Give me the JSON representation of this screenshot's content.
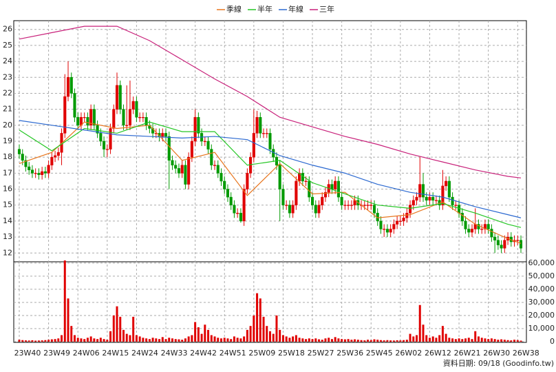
{
  "chart_data": {
    "type": "candlestick",
    "legend_position": "top",
    "grid": true,
    "footer": "資料日期: 09/18 (Goodinfo.tw)",
    "categories": [
      "23W40",
      null,
      null,
      null,
      null,
      null,
      null,
      null,
      null,
      "23W49",
      null,
      null,
      null,
      null,
      null,
      null,
      null,
      null,
      "24W06",
      null,
      null,
      null,
      null,
      null,
      null,
      null,
      null,
      "24W15",
      null,
      null,
      null,
      null,
      null,
      null,
      null,
      null,
      "24W24",
      null,
      null,
      null,
      null,
      null,
      null,
      null,
      null,
      "24W33",
      null,
      null,
      null,
      null,
      null,
      null,
      null,
      null,
      "24W42",
      null,
      null,
      null,
      null,
      null,
      null,
      null,
      null,
      "24W51",
      null,
      null,
      null,
      null,
      null,
      null,
      null,
      null,
      "25W09",
      null,
      null,
      null,
      null,
      null,
      null,
      null,
      null,
      "25W18",
      null,
      null,
      null,
      null,
      null,
      null,
      null,
      null,
      "25W27",
      null,
      null,
      null,
      null,
      null,
      null,
      null,
      null,
      "25W36",
      null,
      null,
      null,
      null,
      null,
      null,
      null,
      null,
      "25W45",
      null,
      null,
      null,
      null,
      null,
      null,
      null,
      null,
      "26W02",
      null,
      null,
      null,
      null,
      null,
      null,
      null,
      null,
      "26W12",
      null,
      null,
      null,
      null,
      null,
      null,
      null,
      null,
      "26W21",
      null,
      null,
      null,
      null,
      null,
      null,
      null,
      null,
      "26W30",
      null,
      null,
      null,
      null,
      null,
      null,
      null,
      null,
      "26W38",
      null
    ],
    "open": [
      18.5,
      18.2,
      17.8,
      17.4,
      17.2,
      17.0,
      17.0,
      16.9,
      17.1,
      17.0,
      17.5,
      18.0,
      18.1,
      18.3,
      19.5,
      21.8,
      23.0,
      22.0,
      20.5,
      20.0,
      20.5,
      20.5,
      20.0,
      21.0,
      20.0,
      19.5,
      19.0,
      18.5,
      18.5,
      19.8,
      21.0,
      22.5,
      21.0,
      20.0,
      20.0,
      21.0,
      21.5,
      20.5,
      20.5,
      20.5,
      20.0,
      19.8,
      19.5,
      19.5,
      19.3,
      19.5,
      19.3,
      17.8,
      17.5,
      17.3,
      17.0,
      17.5,
      16.3,
      18.0,
      19.0,
      20.5,
      19.5,
      19.0,
      19.0,
      18.5,
      17.5,
      17.5,
      17.0,
      16.5,
      16.0,
      15.5,
      15.0,
      14.5,
      14.5,
      14.0,
      16.0,
      17.0,
      18.0,
      19.5,
      20.5,
      19.5,
      19.5,
      19.5,
      18.5,
      18.0,
      17.5,
      16.0,
      15.0,
      15.0,
      14.5,
      15.0,
      16.5,
      17.0,
      16.5,
      16.5,
      15.5,
      15.0,
      14.5,
      15.0,
      15.5,
      15.8,
      16.3,
      16.0,
      16.5,
      15.5,
      15.0,
      15.0,
      15.0,
      15.0,
      15.3,
      15.0,
      15.0,
      15.0,
      15.0,
      15.0,
      14.5,
      14.0,
      13.5,
      13.5,
      13.3,
      13.5,
      13.8,
      14.0,
      14.0,
      14.2,
      14.5,
      15.0,
      15.3,
      15.5,
      16.3,
      15.5,
      15.3,
      15.5,
      15.3,
      15.3,
      15.0,
      16.2,
      16.5,
      15.5,
      15.0,
      15.0,
      14.5,
      14.0,
      13.5,
      13.3,
      13.5,
      13.8,
      13.5,
      13.5,
      13.8,
      13.5,
      13.0,
      12.8,
      12.5,
      12.3,
      12.8,
      13.0,
      12.7,
      12.8,
      12.8
    ],
    "high": [
      18.8,
      18.5,
      18.1,
      17.7,
      17.5,
      17.3,
      17.3,
      17.4,
      17.4,
      17.8,
      18.3,
      18.4,
      18.6,
      19.8,
      23.2,
      24.0,
      23.3,
      22.3,
      20.8,
      20.8,
      20.8,
      20.8,
      21.3,
      21.3,
      20.3,
      19.8,
      19.3,
      18.8,
      20.1,
      21.3,
      23.3,
      22.8,
      21.3,
      22.5,
      22.8,
      21.8,
      21.8,
      20.8,
      20.8,
      20.8,
      20.3,
      20.1,
      19.8,
      19.8,
      19.8,
      19.8,
      19.6,
      18.1,
      17.8,
      17.6,
      17.8,
      17.8,
      18.3,
      19.3,
      21.0,
      20.8,
      19.8,
      19.3,
      19.3,
      18.8,
      17.8,
      17.8,
      17.3,
      16.8,
      16.3,
      15.8,
      15.3,
      14.8,
      14.8,
      16.3,
      17.3,
      18.3,
      21.0,
      20.9,
      20.8,
      19.8,
      19.8,
      19.8,
      18.8,
      18.3,
      17.8,
      16.3,
      15.3,
      15.3,
      15.3,
      16.8,
      17.3,
      17.3,
      16.8,
      16.8,
      15.8,
      15.3,
      15.3,
      15.8,
      16.1,
      16.6,
      16.6,
      16.8,
      16.8,
      15.8,
      15.3,
      15.3,
      15.3,
      15.6,
      15.6,
      15.3,
      15.3,
      15.3,
      15.3,
      15.3,
      14.8,
      14.3,
      13.8,
      13.8,
      13.8,
      14.1,
      14.3,
      14.3,
      14.5,
      14.8,
      15.3,
      15.6,
      15.8,
      18.0,
      17.0,
      15.8,
      15.8,
      15.8,
      15.6,
      15.6,
      17.2,
      16.8,
      16.8,
      15.8,
      15.3,
      15.3,
      14.8,
      14.3,
      13.8,
      13.8,
      14.8,
      14.1,
      13.8,
      14.1,
      14.1,
      13.8,
      13.3,
      13.1,
      12.8,
      13.1,
      13.3,
      13.3,
      13.1,
      13.1,
      13.1
    ],
    "low": [
      17.9,
      17.5,
      17.1,
      16.9,
      16.7,
      16.7,
      16.6,
      16.6,
      16.7,
      16.7,
      17.2,
      17.7,
      17.8,
      17.5,
      19.2,
      21.5,
      21.7,
      20.2,
      19.7,
      19.7,
      20.2,
      19.7,
      19.7,
      19.7,
      19.2,
      18.7,
      18.0,
      18.0,
      18.2,
      19.5,
      20.7,
      20.7,
      19.7,
      19.7,
      19.7,
      20.7,
      20.2,
      20.2,
      20.2,
      19.7,
      19.5,
      19.2,
      19.2,
      19.0,
      19.0,
      19.0,
      16.0,
      17.2,
      17.0,
      16.7,
      16.7,
      16.0,
      16.0,
      17.7,
      18.7,
      19.2,
      18.7,
      18.7,
      18.2,
      17.2,
      17.2,
      16.7,
      16.2,
      15.7,
      15.2,
      14.7,
      14.2,
      14.2,
      13.9,
      13.7,
      15.7,
      16.7,
      17.7,
      19.2,
      19.2,
      19.2,
      19.2,
      18.2,
      17.7,
      17.2,
      14.0,
      14.7,
      14.7,
      14.2,
      14.2,
      14.7,
      16.2,
      16.2,
      16.2,
      15.2,
      14.7,
      14.2,
      14.2,
      14.7,
      15.2,
      15.5,
      15.7,
      15.7,
      15.2,
      14.7,
      14.7,
      14.7,
      14.7,
      14.7,
      14.7,
      14.7,
      14.7,
      14.7,
      14.7,
      14.2,
      13.7,
      13.2,
      13.0,
      13.0,
      13.0,
      13.2,
      13.5,
      13.7,
      13.7,
      13.9,
      14.2,
      14.7,
      15.0,
      15.2,
      15.2,
      15.0,
      15.0,
      15.0,
      15.0,
      14.7,
      14.7,
      15.9,
      15.2,
      14.7,
      14.7,
      14.2,
      13.7,
      13.2,
      13.0,
      13.0,
      13.2,
      13.2,
      13.2,
      13.2,
      13.2,
      12.7,
      12.0,
      12.2,
      12.0,
      12.0,
      12.5,
      12.4,
      12.4,
      12.5,
      12.0
    ],
    "close": [
      18.2,
      17.8,
      17.4,
      17.2,
      17.0,
      17.0,
      16.9,
      17.1,
      17.0,
      17.5,
      18.0,
      18.1,
      18.3,
      19.5,
      21.8,
      23.0,
      22.0,
      20.5,
      20.0,
      20.5,
      20.5,
      20.0,
      21.0,
      20.0,
      19.5,
      19.0,
      18.5,
      18.5,
      19.8,
      21.0,
      22.5,
      21.0,
      20.0,
      20.0,
      21.0,
      21.5,
      20.5,
      20.5,
      20.5,
      20.0,
      19.8,
      19.5,
      19.5,
      19.3,
      19.5,
      19.3,
      17.8,
      17.5,
      17.3,
      17.0,
      17.5,
      16.3,
      18.0,
      19.0,
      20.5,
      19.5,
      19.0,
      19.0,
      18.5,
      17.5,
      17.5,
      17.0,
      16.5,
      16.0,
      15.5,
      15.0,
      14.5,
      14.5,
      14.0,
      16.0,
      17.0,
      18.0,
      19.5,
      20.5,
      19.5,
      19.5,
      19.5,
      18.5,
      18.0,
      17.5,
      16.0,
      15.0,
      15.0,
      14.5,
      15.0,
      16.5,
      17.0,
      16.5,
      16.5,
      15.5,
      15.0,
      14.5,
      15.0,
      15.5,
      15.8,
      16.3,
      16.0,
      16.5,
      15.5,
      15.0,
      15.0,
      15.0,
      15.0,
      15.3,
      15.0,
      15.0,
      15.0,
      15.0,
      15.0,
      14.5,
      14.0,
      13.5,
      13.5,
      13.3,
      13.5,
      13.8,
      14.0,
      14.0,
      14.2,
      14.5,
      15.0,
      15.3,
      15.5,
      16.3,
      15.5,
      15.3,
      15.5,
      15.3,
      15.3,
      15.0,
      16.2,
      16.5,
      15.5,
      15.0,
      15.0,
      14.5,
      14.0,
      13.5,
      13.3,
      13.5,
      13.8,
      13.5,
      13.5,
      13.8,
      13.5,
      13.0,
      12.8,
      12.5,
      12.3,
      12.8,
      13.0,
      12.7,
      12.8,
      12.8,
      12.3
    ],
    "volume": [
      1500,
      1200,
      1000,
      900,
      1100,
      800,
      900,
      1000,
      1200,
      1500,
      1800,
      2000,
      2500,
      5000,
      62000,
      33000,
      12000,
      5000,
      3000,
      2500,
      2000,
      3000,
      4000,
      2500,
      2000,
      3000,
      2000,
      1500,
      8000,
      20000,
      27000,
      19000,
      9000,
      6000,
      5000,
      19000,
      5000,
      4000,
      3000,
      2500,
      2000,
      3000,
      2500,
      2000,
      3500,
      2000,
      3000,
      2500,
      2000,
      1800,
      1500,
      2500,
      4000,
      5000,
      15000,
      11000,
      6000,
      13000,
      9000,
      5000,
      4000,
      3000,
      2500,
      3000,
      2500,
      2000,
      4000,
      3000,
      2500,
      4000,
      9000,
      12000,
      20000,
      37000,
      33000,
      19000,
      12000,
      8000,
      6000,
      20000,
      9000,
      5000,
      4000,
      3000,
      4000,
      5000,
      3000,
      2500,
      2000,
      2500,
      2000,
      2500,
      1800,
      1500,
      2500,
      3000,
      2000,
      3500,
      2500,
      2000,
      1800,
      2000,
      1500,
      1800,
      1500,
      1200,
      1000,
      1500,
      1200,
      1800,
      1500,
      1200,
      1000,
      1200,
      1000,
      900,
      1100,
      1000,
      1200,
      1500,
      6000,
      4000,
      5000,
      28000,
      13000,
      5000,
      3000,
      4000,
      3000,
      5000,
      12000,
      6000,
      3000,
      2500,
      2000,
      2500,
      2000,
      2500,
      3000,
      2000,
      8000,
      4000,
      3000,
      2500,
      2000,
      2500,
      2000,
      1500,
      1800,
      1500,
      1200,
      1000,
      1500,
      1200,
      800
    ],
    "up_color": "#e00000",
    "down_color": "#009a00",
    "volume_color": "#e00000",
    "ylim": [
      11.45,
      26.55
    ],
    "yticks": [
      12,
      13,
      14,
      15,
      16,
      17,
      18,
      19,
      20,
      21,
      22,
      23,
      24,
      25,
      26
    ],
    "y2lim": [
      0,
      61000
    ],
    "y2ticks": [
      0,
      {
        "value": 10000,
        "label": "10,000"
      },
      {
        "value": 20000,
        "label": "20,000"
      },
      {
        "value": 30000,
        "label": "30,000"
      },
      {
        "value": 40000,
        "label": "40,000"
      },
      {
        "value": 50000,
        "label": "50,000"
      },
      {
        "value": 60000,
        "label": "60,000"
      }
    ],
    "series": [
      {
        "name": "季線",
        "color": "#e8761e",
        "x": [
          0,
          10,
          20,
          30,
          40,
          50,
          60,
          70,
          80,
          90,
          100,
          110,
          120,
          130,
          140,
          150,
          154
        ],
        "values": [
          17.6,
          18.3,
          20.2,
          19.8,
          20.0,
          17.8,
          18.3,
          15.6,
          17.6,
          15.7,
          15.8,
          14.2,
          14.4,
          15.2,
          13.8,
          12.9,
          12.6
        ]
      },
      {
        "name": "半年",
        "color": "#22c622",
        "x": [
          0,
          10,
          20,
          30,
          40,
          50,
          60,
          70,
          80,
          90,
          100,
          110,
          120,
          130,
          140,
          150,
          154
        ],
        "values": [
          19.7,
          18.4,
          19.8,
          19.5,
          20.2,
          19.6,
          19.6,
          17.5,
          17.8,
          16.4,
          15.7,
          15.0,
          14.8,
          15.1,
          14.5,
          13.8,
          13.6
        ]
      },
      {
        "name": "年線",
        "color": "#2a68d0",
        "x": [
          0,
          10,
          20,
          30,
          40,
          50,
          60,
          70,
          80,
          90,
          100,
          110,
          120,
          130,
          140,
          150,
          154
        ],
        "values": [
          20.3,
          20.0,
          19.7,
          19.4,
          19.3,
          19.2,
          19.3,
          19.1,
          18.1,
          17.5,
          17.0,
          16.3,
          15.8,
          15.5,
          14.9,
          14.4,
          14.2
        ]
      },
      {
        "name": "三年",
        "color": "#c8207a",
        "x": [
          0,
          10,
          20,
          30,
          40,
          50,
          60,
          70,
          80,
          90,
          100,
          110,
          120,
          130,
          140,
          150,
          154
        ],
        "values": [
          25.4,
          25.8,
          26.2,
          26.2,
          25.3,
          24.1,
          22.9,
          21.8,
          20.5,
          19.9,
          19.3,
          18.8,
          18.2,
          17.7,
          17.2,
          16.8,
          16.7
        ]
      }
    ]
  }
}
